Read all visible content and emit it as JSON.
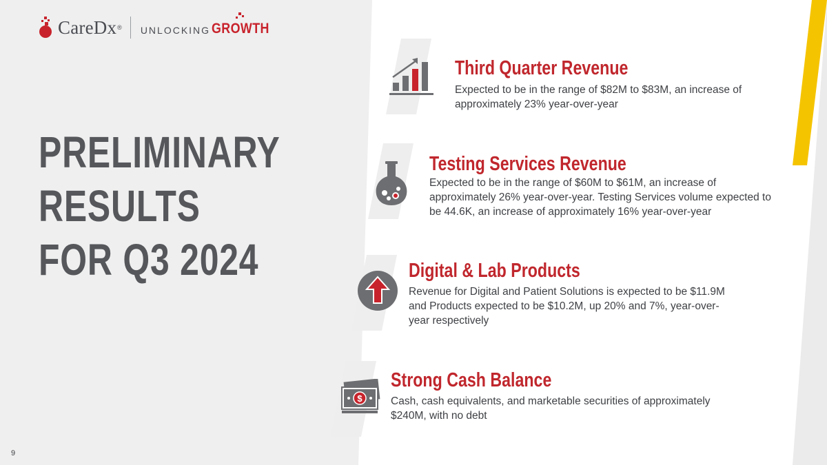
{
  "header": {
    "brand": "CareDx",
    "brand_mark": "®",
    "tagline_part1": "UNLOCKING",
    "tagline_part2": "GROWTH"
  },
  "title": {
    "lines": [
      "PRELIMINARY",
      "RESULTS",
      "FOR Q3 2024"
    ]
  },
  "items": [
    {
      "icon": "bar-chart-growth-icon",
      "title": "Third Quarter Revenue",
      "description": "Expected to be in the range of $82M to $83M, an increase of approximately 23% year-over-year"
    },
    {
      "icon": "lab-flask-icon",
      "title": "Testing Services Revenue",
      "description": "Expected to be in the range of $60M to $61M, an increase of approximately 26% year-over-year. Testing Services volume expected to be 44.6K, an increase of approximately 16% year-over-year"
    },
    {
      "icon": "up-arrow-circle-icon",
      "title": "Digital & Lab Products",
      "description": "Revenue for Digital and Patient Solutions is expected to be $11.9M and Products expected to be $10.2M, up 20% and 7%, year-over-year respectively"
    },
    {
      "icon": "cash-stack-icon",
      "title": "Strong Cash Balance",
      "description": "Cash, cash equivalents, and marketable securities of approximately $240M, with no debt"
    }
  ],
  "page_number": "9",
  "colors": {
    "accent_red": "#c0272d",
    "gray_text": "#55575b",
    "panel_gray": "#efefef",
    "accent_yellow": "#f5c400"
  }
}
